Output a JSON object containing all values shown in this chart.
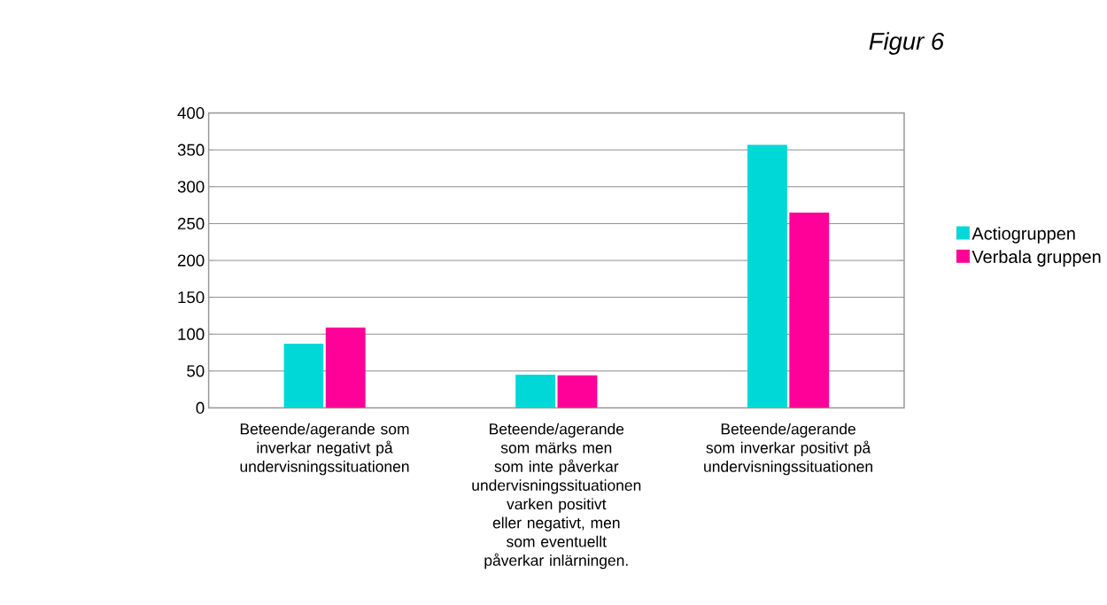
{
  "chart_data": {
    "type": "bar",
    "title": "Figur 6",
    "categories": [
      "Beteende/agerande som inverkar negativt på undervisningssituationen",
      "Beteende/agerande som märks men som inte påverkar undervisningssituationen varken positivt eller negativt, men som eventuellt påverkar inlärningen.",
      "Beteende/agerande som inverkar positivt på undervisningssituationen"
    ],
    "series": [
      {
        "name": "Actiogruppen",
        "color": "#00d8d8",
        "values": [
          87,
          45,
          357
        ]
      },
      {
        "name": "Verbala gruppen",
        "color": "#ff0099",
        "values": [
          109,
          44,
          265
        ]
      }
    ],
    "ylim": [
      0,
      400
    ],
    "yticks": [
      0,
      50,
      100,
      150,
      200,
      250,
      300,
      350,
      400
    ],
    "grid": "y",
    "legend": "right"
  }
}
